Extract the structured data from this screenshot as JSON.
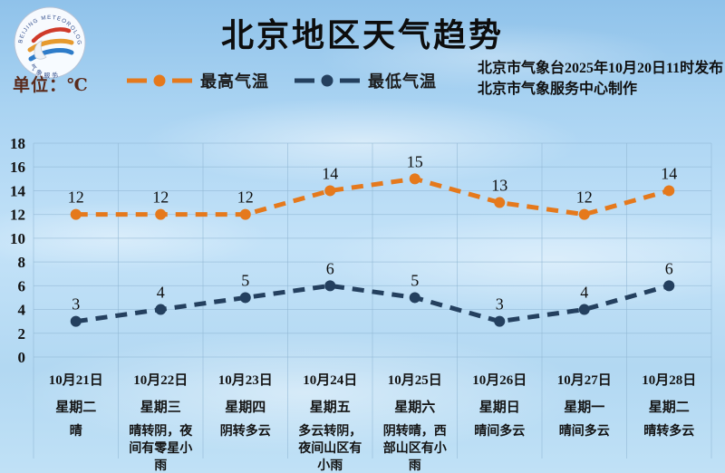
{
  "header": {
    "title": "北京地区天气趋势",
    "unit_label": "单位：℃",
    "issued_line1": "北京市气象台2025年10月20日11时发布",
    "issued_line2": "北京市气象服务中心制作",
    "logo_text_top": "BEIJING METEOROLOGICAL SERVICE",
    "logo_text_bottom": "气象服务"
  },
  "chart_data": {
    "type": "line",
    "title": "北京地区天气趋势",
    "unit": "℃",
    "ylim": [
      0,
      18
    ],
    "ytick_step": 2,
    "grid": true,
    "legend_position": "top-left",
    "line_style": "dashed",
    "categories": [
      {
        "date": "10月21日",
        "weekday": "星期二",
        "weather": "晴"
      },
      {
        "date": "10月22日",
        "weekday": "星期三",
        "weather": "晴转阴，夜间有零星小雨"
      },
      {
        "date": "10月23日",
        "weekday": "星期四",
        "weather": "阴转多云"
      },
      {
        "date": "10月24日",
        "weekday": "星期五",
        "weather": "多云转阴，夜间山区有小雨"
      },
      {
        "date": "10月25日",
        "weekday": "星期六",
        "weather": "阴转晴，西部山区有小雨"
      },
      {
        "date": "10月26日",
        "weekday": "星期日",
        "weather": "晴间多云"
      },
      {
        "date": "10月27日",
        "weekday": "星期一",
        "weather": "晴间多云"
      },
      {
        "date": "10月28日",
        "weekday": "星期二",
        "weather": "晴转多云"
      }
    ],
    "series": [
      {
        "name": "最高气温",
        "values": [
          12,
          12,
          12,
          14,
          15,
          13,
          12,
          14
        ],
        "color": "#e5791c"
      },
      {
        "name": "最低气温",
        "values": [
          3,
          4,
          5,
          6,
          5,
          3,
          4,
          6
        ],
        "color": "#24405f"
      }
    ],
    "colors": {
      "grid_line": "#8fb6d4",
      "tick_label": "#121212",
      "value_label": "#0f0f0f"
    }
  }
}
